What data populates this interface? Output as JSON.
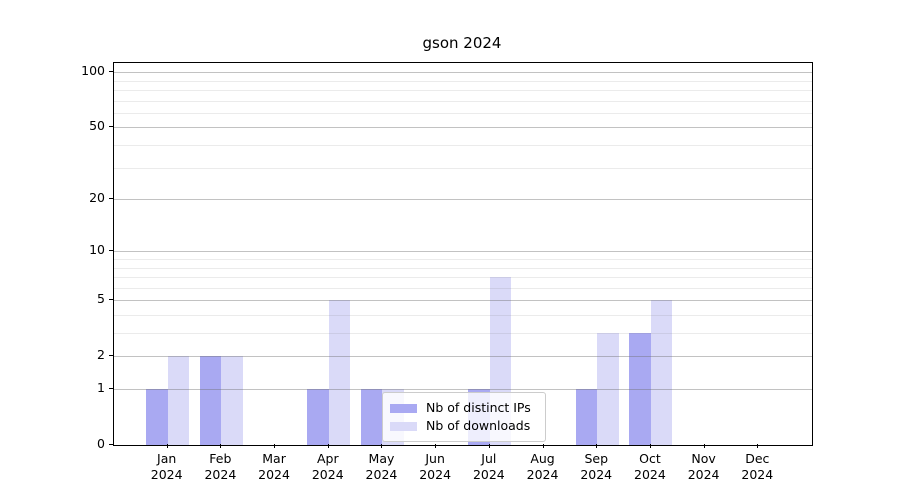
{
  "chart_data": {
    "type": "bar",
    "title": "gson 2024",
    "categories": [
      "Jan",
      "Feb",
      "Mar",
      "Apr",
      "May",
      "Jun",
      "Jul",
      "Aug",
      "Sep",
      "Oct",
      "Nov",
      "Dec"
    ],
    "category_year": "2024",
    "series": [
      {
        "name": "Nb of distinct IPs",
        "color": "#a9a9f2",
        "values": [
          1,
          2,
          0,
          1,
          1,
          0,
          1,
          0,
          1,
          3,
          0,
          0
        ]
      },
      {
        "name": "Nb of downloads",
        "color": "#dadaf8",
        "values": [
          2,
          2,
          0,
          5,
          1,
          0,
          7,
          0,
          3,
          5,
          0,
          0
        ]
      }
    ],
    "yscale": "log1p",
    "ylim": [
      0,
      100
    ],
    "yticks": [
      0,
      1,
      2,
      5,
      10,
      20,
      50,
      100
    ],
    "minor_yticks": [
      3,
      4,
      6,
      7,
      8,
      9,
      30,
      40,
      60,
      70,
      80,
      90
    ],
    "grid": "horizontal",
    "legend": {
      "position": "inside-bottom-center"
    }
  }
}
